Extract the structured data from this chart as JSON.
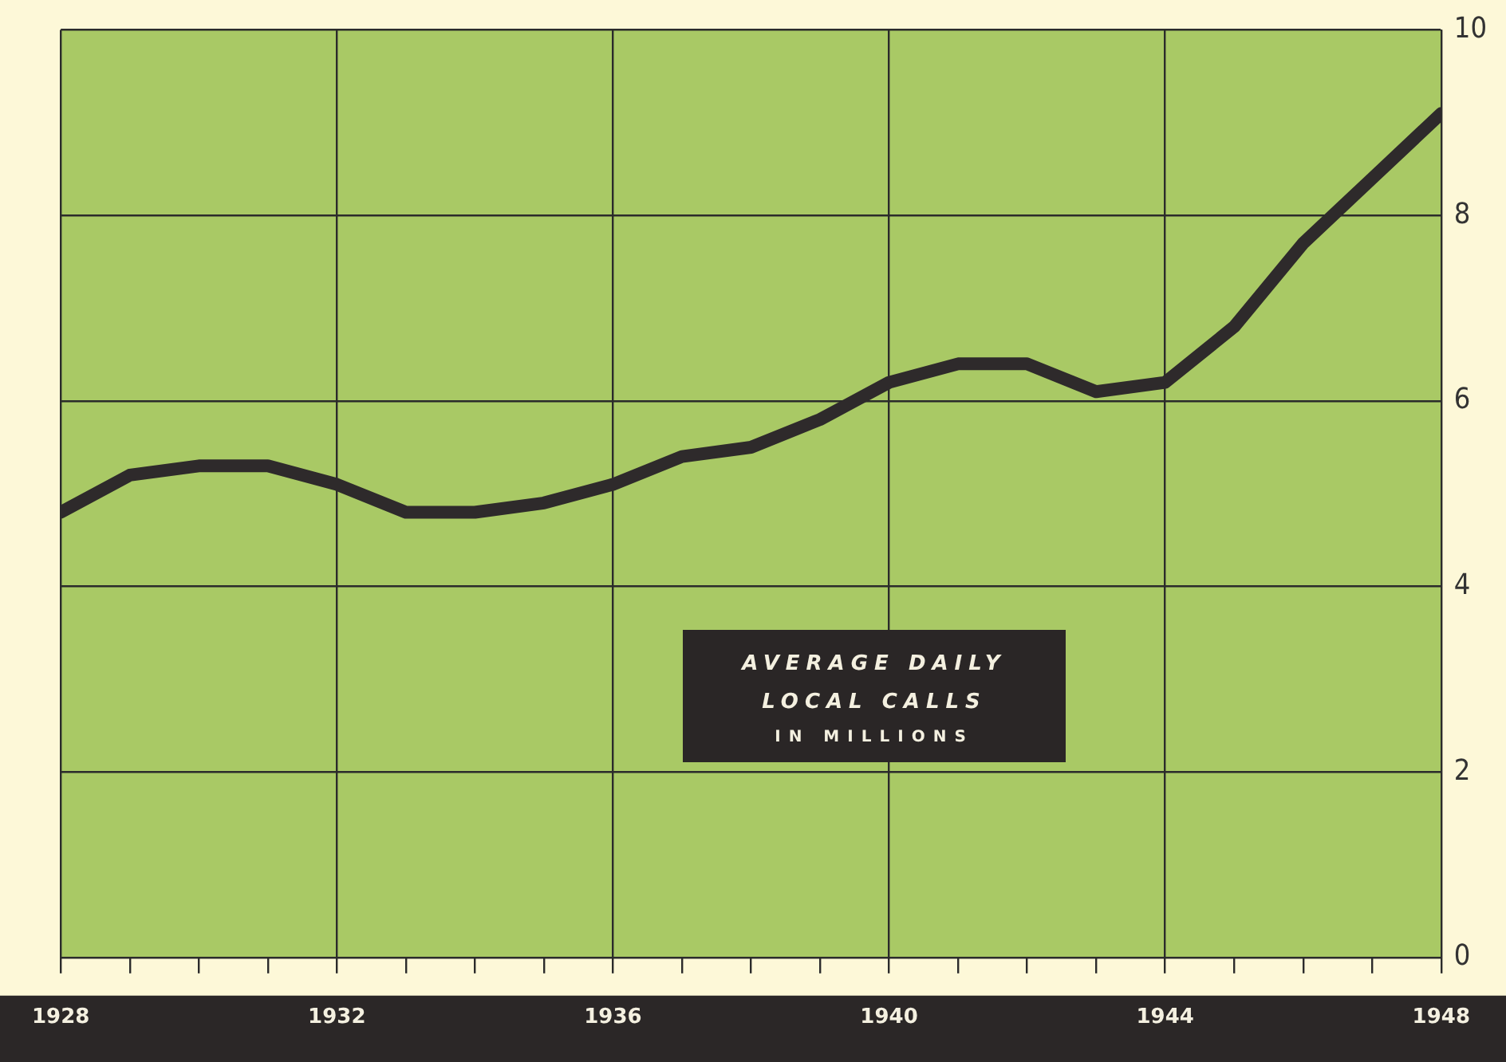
{
  "chart_data": {
    "type": "line",
    "title": "AVERAGE DAILY LOCAL CALLS",
    "subtitle": "IN MILLIONS",
    "x": [
      1928,
      1929,
      1930,
      1931,
      1932,
      1933,
      1934,
      1935,
      1936,
      1937,
      1938,
      1939,
      1940,
      1941,
      1942,
      1943,
      1944,
      1945,
      1946,
      1947,
      1948
    ],
    "series": [
      {
        "color": "#2e2a2b",
        "values": [
          4.8,
          5.2,
          5.3,
          5.3,
          5.1,
          4.8,
          4.8,
          4.9,
          5.1,
          5.4,
          5.5,
          5.8,
          6.2,
          6.4,
          6.4,
          6.1,
          6.2,
          6.8,
          7.7,
          8.4,
          9.1
        ]
      }
    ],
    "xlim": [
      1928,
      1948
    ],
    "xticks": [
      1928,
      {
        "value": 1929,
        "label": null
      },
      {
        "value": 1930,
        "label": null
      },
      {
        "value": 1931,
        "label": null
      },
      1932,
      {
        "value": 1933,
        "label": null
      },
      {
        "value": 1934,
        "label": null
      },
      {
        "value": 1935,
        "label": null
      },
      1936,
      {
        "value": 1937,
        "label": null
      },
      {
        "value": 1938,
        "label": null
      },
      {
        "value": 1939,
        "label": null
      },
      1940,
      {
        "value": 1941,
        "label": null
      },
      {
        "value": 1942,
        "label": null
      },
      {
        "value": 1943,
        "label": null
      },
      1944,
      {
        "value": 1945,
        "label": null
      },
      {
        "value": 1946,
        "label": null
      },
      {
        "value": 1947,
        "label": null
      },
      1948
    ],
    "ylim": [
      0,
      10
    ],
    "yticks": [
      0,
      2,
      4,
      6,
      8,
      10
    ],
    "grid": true,
    "marker": "none",
    "line_style": "solid"
  }
}
